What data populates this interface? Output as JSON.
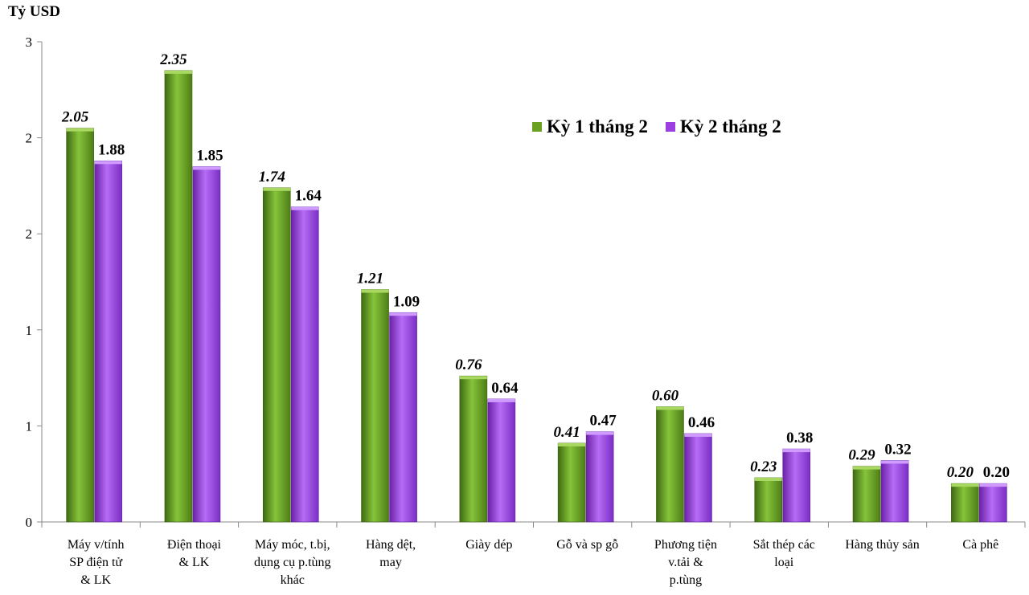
{
  "chart_data": {
    "type": "bar",
    "unit_label": "Tỷ USD",
    "categories": [
      [
        "Máy v/tính",
        "SP điện tử",
        "& LK"
      ],
      [
        "Điện thoại",
        "& LK"
      ],
      [
        "Máy móc, t.bị,",
        "dụng cụ p.tùng",
        "khác"
      ],
      [
        "Hàng dệt,",
        "may"
      ],
      [
        "Giày dép"
      ],
      [
        "Gỗ và sp gỗ"
      ],
      [
        "Phương tiện",
        "v.tải &",
        "p.tùng"
      ],
      [
        "Sắt thép các",
        "loại"
      ],
      [
        "Hàng thủy sản"
      ],
      [
        "Cà phê"
      ]
    ],
    "series": [
      {
        "name": "Kỳ 1 tháng 2",
        "color": "#6aa121",
        "values": [
          2.05,
          2.35,
          1.74,
          1.21,
          0.76,
          0.41,
          0.6,
          0.23,
          0.29,
          0.2
        ],
        "labels": [
          "2.05",
          "2.35",
          "1.74",
          "1.21",
          "0.76",
          "0.41",
          "0.60",
          "0.23",
          "0.29",
          "0.20"
        ]
      },
      {
        "name": "Kỳ 2 tháng 2",
        "color": "#9b3fe0",
        "values": [
          1.88,
          1.85,
          1.64,
          1.09,
          0.64,
          0.47,
          0.46,
          0.38,
          0.32,
          0.2
        ],
        "labels": [
          "1.88",
          "1.85",
          "1.64",
          "1.09",
          "0.64",
          "0.47",
          "0.46",
          "0.38",
          "0.32",
          "0.20"
        ]
      }
    ],
    "ylim": [
      0,
      2.5
    ],
    "y_ticks": [
      0,
      0.5,
      1,
      1.5,
      2,
      2.5
    ],
    "y_tick_labels": [
      "0",
      "1",
      "1",
      "2",
      "2",
      "3"
    ],
    "grid": false,
    "legend_position": "top-right"
  }
}
